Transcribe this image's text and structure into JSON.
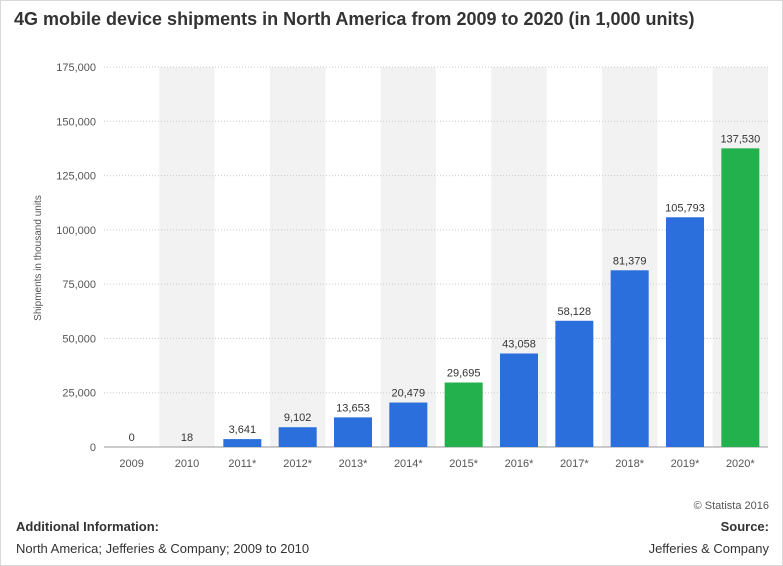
{
  "chart_data": {
    "type": "bar",
    "title": "4G mobile device shipments in North America from 2009 to 2020 (in 1,000 units)",
    "ylabel": "Shipments in thousand units",
    "xlabel": "",
    "categories": [
      "2009",
      "2010",
      "2011*",
      "2012*",
      "2013*",
      "2014*",
      "2015*",
      "2016*",
      "2017*",
      "2018*",
      "2019*",
      "2020*"
    ],
    "values": [
      0,
      18,
      3641,
      9102,
      13653,
      20479,
      29695,
      43058,
      58128,
      81379,
      105793,
      137530
    ],
    "value_labels": [
      "0",
      "18",
      "3,641",
      "9,102",
      "13,653",
      "20,479",
      "29,695",
      "43,058",
      "58,128",
      "81,379",
      "105,793",
      "137,530"
    ],
    "bar_colors": [
      "#2a6fdb",
      "#2a6fdb",
      "#2a6fdb",
      "#2a6fdb",
      "#2a6fdb",
      "#2a6fdb",
      "#22b14c",
      "#2a6fdb",
      "#2a6fdb",
      "#2a6fdb",
      "#2a6fdb",
      "#22b14c"
    ],
    "ylim": [
      0,
      175000
    ],
    "yticks": [
      0,
      25000,
      50000,
      75000,
      100000,
      125000,
      150000,
      175000
    ],
    "ytick_labels": [
      "0",
      "25,000",
      "50,000",
      "75,000",
      "100,000",
      "125,000",
      "150,000",
      "175,000"
    ],
    "grid": true,
    "legend": "none",
    "colors": {
      "primary": "#2a6fdb",
      "highlight": "#22b14c",
      "band": "#f2f2f2",
      "grid": "#c9c9c9"
    }
  },
  "footer": {
    "copyright": "© Statista 2016",
    "additional_info_label": "Additional Information:",
    "additional_info_text": "North America; Jefferies & Company; 2009 to 2010",
    "source_label": "Source:",
    "source_text": "Jefferies & Company"
  }
}
